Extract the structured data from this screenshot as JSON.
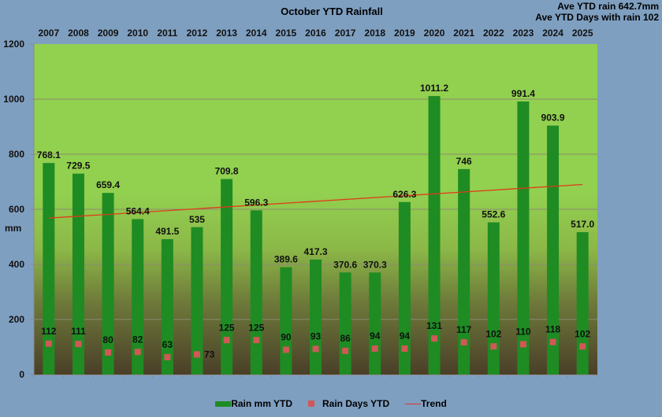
{
  "colors": {
    "background": "#7f9fc0",
    "plot_top": "#92d050",
    "plot_bottom": "#4a3f28",
    "bar": "#1e8c22",
    "marker": "#d05858",
    "trend": "#e03a1a",
    "grid": "#8c8c70"
  },
  "annotations": {
    "ave_rain": "Ave YTD rain 642.7mm",
    "ave_days": "Ave YTD Days with rain 102"
  },
  "chart_data": {
    "type": "bar",
    "title": "October YTD Rainfall",
    "xlabel": "",
    "ylabel": "mm",
    "ylim": [
      0,
      1200
    ],
    "yticks": [
      0,
      200,
      400,
      600,
      800,
      1000,
      1200
    ],
    "grid": true,
    "legend_position": "bottom",
    "categories": [
      "2007",
      "2008",
      "2009",
      "2010",
      "2011",
      "2012",
      "2013",
      "2014",
      "2015",
      "2016",
      "2017",
      "2018",
      "2019",
      "2020",
      "2021",
      "2022",
      "2023",
      "2024",
      "2025"
    ],
    "series": [
      {
        "name": "Rain mm YTD",
        "type": "bar",
        "values": [
          768.1,
          729.5,
          659.4,
          564.4,
          491.5,
          535,
          709.8,
          596.3,
          389.6,
          417.3,
          370.6,
          370.3,
          626.3,
          1011.2,
          746,
          552.6,
          991.4,
          903.9,
          517.0
        ],
        "labels": [
          "768.1",
          "729.5",
          "659.4",
          "564.4",
          "491.5",
          "535",
          "709.8",
          "596.3",
          "389.6",
          "417.3",
          "370.6",
          "370.3",
          "626.3",
          "1011.2",
          "746",
          "552.6",
          "991.4",
          "903.9",
          "517.0"
        ]
      },
      {
        "name": "Rain Days YTD",
        "type": "scatter",
        "values": [
          112,
          111,
          80,
          82,
          63,
          73,
          125,
          125,
          90,
          93,
          86,
          94,
          94,
          131,
          117,
          102,
          110,
          118,
          102
        ],
        "labels": [
          "112",
          "111",
          "80",
          "82",
          "63",
          "73",
          "125",
          "125",
          "90",
          "93",
          "86",
          "94",
          "94",
          "131",
          "117",
          "102",
          "110",
          "118",
          "102"
        ]
      },
      {
        "name": "Trend",
        "type": "line",
        "start": 568,
        "end": 690
      }
    ]
  }
}
